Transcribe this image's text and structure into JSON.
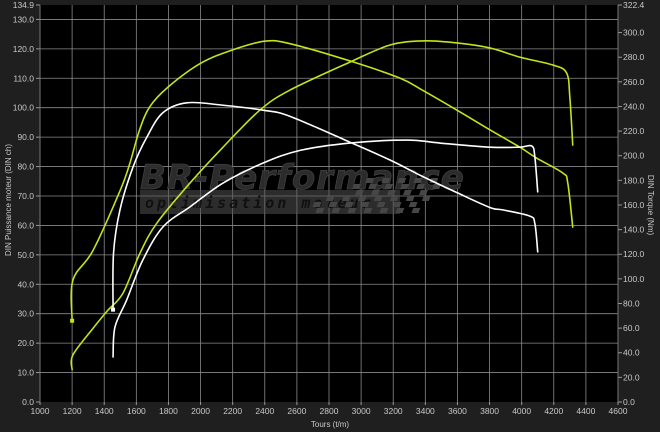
{
  "chart_data": {
    "type": "line",
    "xlabel": "Tours (t/m)",
    "ylabel_left": "DIN Puissance moteur (DIN ch)",
    "ylabel_right": "DIN Torque (Nm)",
    "xlim": [
      1000,
      4600
    ],
    "ylim_left": [
      0,
      134.9
    ],
    "ylim_right": [
      0,
      322.4
    ],
    "x_ticks": [
      "1000",
      "1200",
      "1400",
      "1600",
      "1800",
      "2000",
      "2200",
      "2400",
      "2600",
      "2800",
      "3000",
      "3200",
      "3400",
      "3600",
      "3800",
      "4000",
      "4200",
      "4400",
      "4600"
    ],
    "y_left_ticks": [
      "0.0",
      "10.0",
      "20.0",
      "30.0",
      "40.0",
      "50.0",
      "60.0",
      "70.0",
      "80.0",
      "90.0",
      "100.0",
      "110.0",
      "120.0",
      "130.0",
      "134.9"
    ],
    "y_right_ticks": [
      "0.0",
      "20.0",
      "40.0",
      "60.0",
      "80.0",
      "100.0",
      "120.0",
      "140.0",
      "160.0",
      "180.0",
      "200.0",
      "220.0",
      "240.0",
      "260.0",
      "280.0",
      "300.0",
      "322.4"
    ],
    "grid": true,
    "series": [
      {
        "axis": "left",
        "color": "#c6e21a",
        "points": [
          [
            1200,
            11
          ],
          [
            1205,
            16
          ],
          [
            1330,
            25
          ],
          [
            1420,
            31
          ],
          [
            1517,
            37
          ],
          [
            1623,
            50.6
          ],
          [
            1728,
            60.8
          ],
          [
            1934,
            74.4
          ],
          [
            2140,
            86.6
          ],
          [
            2370,
            99.2
          ],
          [
            2557,
            106
          ],
          [
            2930,
            115.5
          ],
          [
            3180,
            121.3
          ],
          [
            3385,
            122.7
          ],
          [
            3597,
            122
          ],
          [
            3802,
            120.3
          ],
          [
            3988,
            117.2
          ],
          [
            4194,
            114.5
          ],
          [
            4280,
            111.8
          ],
          [
            4300,
            103.6
          ],
          [
            4318,
            87.3
          ]
        ]
      },
      {
        "axis": "right",
        "color": "#c6e21a",
        "marker": true,
        "points": [
          [
            1200,
            66
          ],
          [
            1205,
            99
          ],
          [
            1330,
            123
          ],
          [
            1500,
            172
          ],
          [
            1560,
            194
          ],
          [
            1620,
            221
          ],
          [
            1685,
            240
          ],
          [
            1800,
            256
          ],
          [
            2000,
            275
          ],
          [
            2200,
            286
          ],
          [
            2400,
            293
          ],
          [
            2557,
            291
          ],
          [
            2930,
            277
          ],
          [
            3242,
            263
          ],
          [
            3385,
            253
          ],
          [
            3597,
            237
          ],
          [
            3802,
            221
          ],
          [
            3988,
            207
          ],
          [
            4094,
            198
          ],
          [
            4256,
            186
          ],
          [
            4287,
            178
          ],
          [
            4318,
            142
          ]
        ]
      },
      {
        "axis": "left",
        "color": "#ffffff",
        "points": [
          [
            1455,
            15.3
          ],
          [
            1467,
            25.5
          ],
          [
            1540,
            34.7
          ],
          [
            1640,
            48.2
          ],
          [
            1766,
            59.5
          ],
          [
            1934,
            66.3
          ],
          [
            2140,
            74.4
          ],
          [
            2390,
            81.2
          ],
          [
            2620,
            85.5
          ],
          [
            2930,
            88
          ],
          [
            3285,
            89
          ],
          [
            3490,
            88
          ],
          [
            3802,
            86.6
          ],
          [
            3988,
            86.6
          ],
          [
            4063,
            87
          ],
          [
            4082,
            83.3
          ],
          [
            4100,
            71.4
          ]
        ]
      },
      {
        "axis": "right",
        "color": "#ffffff",
        "marker": true,
        "points": [
          [
            1455,
            75
          ],
          [
            1458,
            121
          ],
          [
            1498,
            156
          ],
          [
            1580,
            191
          ],
          [
            1665,
            215
          ],
          [
            1766,
            235
          ],
          [
            1915,
            243
          ],
          [
            2140,
            241
          ],
          [
            2390,
            237
          ],
          [
            2557,
            232
          ],
          [
            2930,
            211
          ],
          [
            3180,
            196.5
          ],
          [
            3385,
            183
          ],
          [
            3597,
            170
          ],
          [
            3802,
            158
          ],
          [
            3883,
            156
          ],
          [
            4050,
            151
          ],
          [
            4082,
            145
          ],
          [
            4100,
            122
          ]
        ]
      }
    ]
  },
  "watermark": {
    "brand": "BR-Performance",
    "tagline": "optimisation moteur"
  }
}
